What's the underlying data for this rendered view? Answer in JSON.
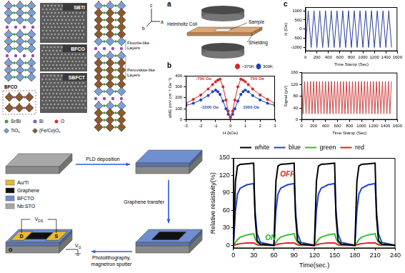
{
  "structure": {
    "image_labels": [
      "SBTi",
      "BFCO",
      "SBFCT"
    ],
    "box_label": "BFCO",
    "layers": [
      "Fluorite-like Layers",
      "Perovskite-like Layers"
    ],
    "axes": [
      "c",
      "a",
      "b"
    ],
    "legend": [
      {
        "name": "Sr/Bi",
        "color": "#3c9a3c",
        "marker": "circle"
      },
      {
        "name": "Bi",
        "color": "#8a4fbf",
        "marker": "circle"
      },
      {
        "name": "O",
        "color": "#d83030",
        "marker": "circle"
      },
      {
        "name": "TiO₆",
        "color": "#7b9fd4",
        "marker": "diamond"
      },
      {
        "name": "(Fe/Co)O₆",
        "color": "#8b5a2b",
        "marker": "diamond"
      }
    ]
  },
  "setup": {
    "labels": [
      "Helmholtz Coil",
      "Sample",
      "Shielding"
    ]
  },
  "panel_letters": {
    "setup": "a",
    "field": "b",
    "time": "c"
  },
  "fabrication": {
    "steps": [
      "PLD deposition",
      "Graphene transfer",
      "Photolithography, magnetron sputter"
    ],
    "legend": [
      {
        "name": "Au/Ti",
        "color": "#e8b830"
      },
      {
        "name": "Graphene",
        "color": "#111111"
      },
      {
        "name": "BFCTO",
        "color": "#6f8fd0"
      },
      {
        "name": "Nb:STO",
        "color": "#a8a8a8"
      }
    ],
    "terminals": {
      "drain": "D",
      "source": "S",
      "gate": "G"
    },
    "voltages": {
      "drain_source": "VDS",
      "gate": "VG"
    }
  },
  "chart_data": [
    {
      "type": "line",
      "x_label": "H (kOe)",
      "y_label": "αME (mV cm⁻¹ Oe⁻¹)",
      "x": [
        -3,
        -2.5,
        -2,
        -1.5,
        -1.2,
        -1,
        -0.85,
        -0.7,
        -0.5,
        -0.3,
        -0.15,
        0,
        0.15,
        0.3,
        0.5,
        0.7,
        0.85,
        1,
        1.2,
        1.5,
        2,
        2.5,
        3
      ],
      "series": [
        {
          "name": "~370K",
          "color": "#d62728",
          "marker": "circle",
          "values": [
            150,
            185,
            225,
            280,
            320,
            345,
            360,
            370,
            300,
            180,
            80,
            20,
            80,
            180,
            300,
            370,
            360,
            345,
            320,
            280,
            225,
            185,
            150
          ]
        },
        {
          "name": "300K",
          "color": "#1f3fbf",
          "marker": "circle",
          "values": [
            130,
            150,
            180,
            220,
            255,
            270,
            255,
            230,
            170,
            100,
            50,
            25,
            50,
            100,
            170,
            230,
            255,
            270,
            255,
            220,
            180,
            150,
            130
          ]
        }
      ],
      "xlim": [
        -3,
        3
      ],
      "xticks": [
        -3,
        -2,
        -1,
        0,
        1,
        2,
        3
      ],
      "ylim": [
        0,
        400
      ],
      "yticks": [
        0,
        100,
        200,
        300,
        400
      ],
      "legend": "top-right",
      "grid": false,
      "annotations": [
        {
          "text": "-700 Oe",
          "color": "#d62728"
        },
        {
          "text": "700 Oe",
          "color": "#d62728"
        },
        {
          "text": "-1000 Oe",
          "color": "#1f3fbf"
        },
        {
          "text": "1000 Oe",
          "color": "#1f3fbf"
        }
      ]
    },
    {
      "type": "line",
      "x_label": "Time Stamp (Sec)",
      "y_label": "H (Oe)",
      "x": [
        0,
        50,
        100,
        150,
        200,
        250,
        300,
        350,
        400,
        450,
        500,
        550,
        600,
        650,
        700,
        750,
        800,
        850,
        900,
        950,
        1000,
        1050,
        1100,
        1150,
        1200,
        1250,
        1300,
        1350,
        1400,
        1450,
        1500
      ],
      "values": [
        -1000,
        1000,
        -1000,
        1000,
        -1000,
        1000,
        -1000,
        1000,
        -1000,
        1000,
        -1000,
        1000,
        -1000,
        1000,
        -1000,
        1000,
        -1000,
        1000,
        -1000,
        1000,
        -1000,
        1000,
        -1000,
        1000,
        -1000,
        1000,
        -1000,
        1000,
        -1000,
        1000,
        -1000
      ],
      "color": "#2a3f9a",
      "xlim": [
        0,
        1600
      ],
      "xticks": [
        0,
        200,
        400,
        600,
        800,
        1000,
        1200,
        1400,
        1600
      ],
      "ylim": [
        -1200,
        1200
      ],
      "yticks": [
        -1000,
        -500,
        0,
        500,
        1000
      ],
      "grid": false
    },
    {
      "type": "line",
      "x_label": "Time Stamp (Sec)",
      "y_label": "Signal (μV)",
      "x": [
        0,
        25,
        50,
        75,
        100,
        125,
        150,
        175,
        200,
        225,
        250,
        275,
        300,
        325,
        350,
        375,
        400,
        425,
        450,
        475,
        500,
        525,
        550,
        575,
        600,
        625,
        650,
        675,
        700,
        725,
        750,
        775,
        800,
        825,
        850,
        875,
        900,
        925,
        950,
        975,
        1000,
        1025,
        1050,
        1075,
        1100,
        1125,
        1150,
        1175,
        1200,
        1225,
        1250,
        1275,
        1300,
        1325,
        1350,
        1375,
        1400,
        1425,
        1450,
        1475,
        1500
      ],
      "values": [
        130,
        20,
        130,
        20,
        130,
        20,
        130,
        20,
        130,
        20,
        130,
        20,
        130,
        20,
        130,
        20,
        130,
        20,
        130,
        20,
        130,
        20,
        130,
        20,
        130,
        20,
        130,
        20,
        130,
        20,
        130,
        20,
        130,
        20,
        130,
        20,
        130,
        20,
        130,
        20,
        130,
        20,
        130,
        20,
        130,
        20,
        130,
        20,
        130,
        20,
        130,
        20,
        130,
        20,
        130,
        20,
        130,
        20,
        130,
        20,
        130
      ],
      "color": "#d04040",
      "xlim": [
        0,
        1600
      ],
      "xticks": [
        0,
        200,
        400,
        600,
        800,
        1000,
        1200,
        1400,
        1600
      ],
      "ylim": [
        0,
        160
      ],
      "yticks": [
        0,
        40,
        80,
        120,
        160
      ],
      "grid": false
    },
    {
      "type": "line",
      "x_label": "Time(sec.)",
      "y_label": "Relative resistivity(%)",
      "x": [
        0,
        3,
        6,
        10,
        20,
        30,
        32,
        35,
        40,
        60,
        63,
        66,
        70,
        80,
        90,
        92,
        95,
        100,
        120,
        123,
        126,
        130,
        140,
        150,
        152,
        155,
        160,
        180,
        183,
        186,
        190,
        200,
        210,
        212,
        215,
        220,
        240
      ],
      "series": [
        {
          "name": "white",
          "color": "#000000",
          "values": [
            0,
            110,
            136,
            139,
            140,
            141,
            50,
            8,
            2,
            0,
            110,
            136,
            139,
            140,
            141,
            50,
            8,
            2,
            0,
            110,
            136,
            139,
            140,
            141,
            50,
            8,
            2,
            0,
            110,
            136,
            139,
            140,
            141,
            50,
            8,
            2,
            0
          ]
        },
        {
          "name": "blue",
          "color": "#2040d0",
          "values": [
            0,
            60,
            88,
            98,
            104,
            106,
            60,
            20,
            5,
            0,
            60,
            88,
            98,
            104,
            106,
            60,
            20,
            5,
            0,
            60,
            88,
            98,
            104,
            106,
            60,
            20,
            5,
            0,
            60,
            88,
            98,
            104,
            106,
            60,
            20,
            5,
            0
          ]
        },
        {
          "name": "green",
          "color": "#30c030",
          "values": [
            0,
            5,
            10,
            14,
            18,
            20,
            12,
            5,
            1,
            0,
            5,
            10,
            14,
            18,
            20,
            12,
            5,
            1,
            0,
            5,
            10,
            14,
            18,
            20,
            12,
            5,
            1,
            0,
            5,
            10,
            14,
            18,
            20,
            12,
            5,
            1,
            0
          ]
        },
        {
          "name": "red",
          "color": "#e02020",
          "values": [
            0,
            1,
            2,
            3,
            4,
            4,
            3,
            1,
            0,
            0,
            1,
            2,
            3,
            4,
            4,
            3,
            1,
            0,
            0,
            1,
            2,
            3,
            4,
            4,
            3,
            1,
            0,
            0,
            1,
            2,
            3,
            4,
            4,
            3,
            1,
            0,
            0
          ]
        }
      ],
      "xlim": [
        0,
        240
      ],
      "xticks": [
        0,
        30,
        60,
        90,
        120,
        150,
        180,
        210,
        240
      ],
      "ylim": [
        -5,
        150
      ],
      "yticks": [
        0,
        30,
        60,
        90,
        120,
        150
      ],
      "legend": "top",
      "grid": false,
      "annotations": [
        {
          "text": "OFF",
          "color": "#e02020"
        },
        {
          "text": "ON",
          "color": "#20b020"
        }
      ]
    }
  ]
}
